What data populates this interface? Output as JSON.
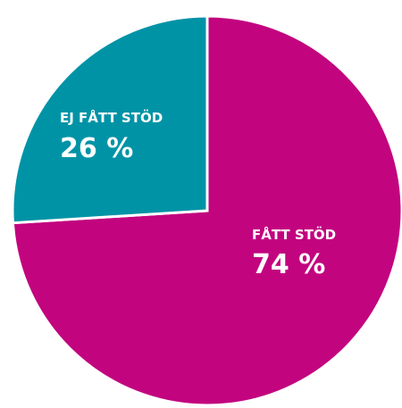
{
  "chart_data": {
    "type": "pie",
    "categories": [
      "FÅTT STÖD",
      "EJ FÅTT STÖD"
    ],
    "values": [
      74,
      26
    ],
    "value_labels": [
      "74 %",
      "26 %"
    ],
    "colors": [
      "#c2047f",
      "#0093a6"
    ]
  }
}
